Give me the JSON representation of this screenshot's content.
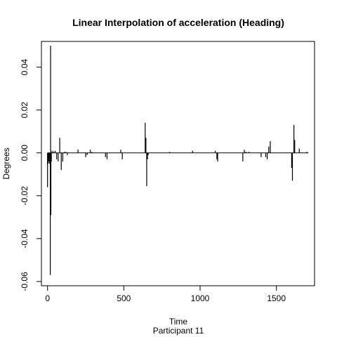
{
  "chart_data": {
    "type": "line",
    "title": "Linear Interpolation of acceleration (Heading)",
    "xlabel": "Time",
    "subtitle": "Participant  11",
    "ylabel": "Degrees",
    "xlim": [
      -40,
      1750
    ],
    "ylim": [
      -0.062,
      0.052
    ],
    "x_ticks": [
      0,
      500,
      1000,
      1500
    ],
    "x_tick_labels": [
      "0",
      "500",
      "1000",
      "1500"
    ],
    "y_ticks": [
      -0.06,
      -0.04,
      -0.02,
      0.0,
      0.02,
      0.04
    ],
    "y_tick_labels": [
      "-0.06",
      "-0.04",
      "-0.02",
      "0.00",
      "0.02",
      "0.04"
    ],
    "grid": false,
    "series": [
      {
        "spikes": [
          [
            0,
            -0.016
          ],
          [
            3,
            -0.005
          ],
          [
            6,
            -0.003
          ],
          [
            9,
            -0.004
          ],
          [
            12,
            -0.005
          ],
          [
            15,
            -0.002
          ],
          [
            18,
            -0.057
          ],
          [
            20,
            0.05
          ],
          [
            22,
            -0.029
          ],
          [
            25,
            -0.004
          ],
          [
            30,
            0.001
          ],
          [
            40,
            0.0007
          ],
          [
            50,
            0.001
          ],
          [
            60,
            -0.003
          ],
          [
            70,
            -0.004
          ],
          [
            80,
            0.007
          ],
          [
            90,
            -0.008
          ],
          [
            100,
            -0.004
          ],
          [
            110,
            0.0005
          ],
          [
            120,
            0.0005
          ],
          [
            130,
            -0.001
          ],
          [
            200,
            0.0015
          ],
          [
            250,
            -0.002
          ],
          [
            260,
            -0.001
          ],
          [
            280,
            0.0015
          ],
          [
            290,
            0.0005
          ],
          [
            380,
            -0.002
          ],
          [
            390,
            -0.003
          ],
          [
            480,
            0.0015
          ],
          [
            490,
            -0.003
          ],
          [
            640,
            0.014
          ],
          [
            645,
            0.007
          ],
          [
            650,
            -0.0155
          ],
          [
            655,
            -0.003
          ],
          [
            660,
            -0.001
          ],
          [
            800,
            0.0005
          ],
          [
            950,
            0.001
          ],
          [
            1100,
            0.001
          ],
          [
            1110,
            -0.003
          ],
          [
            1115,
            -0.004
          ],
          [
            1280,
            -0.004
          ],
          [
            1290,
            0.0015
          ],
          [
            1300,
            0.0005
          ],
          [
            1320,
            0.0005
          ],
          [
            1400,
            -0.002
          ],
          [
            1430,
            -0.002
          ],
          [
            1440,
            -0.003
          ],
          [
            1450,
            0.003
          ],
          [
            1460,
            0.0055
          ],
          [
            1600,
            -0.007
          ],
          [
            1605,
            -0.013
          ],
          [
            1615,
            0.013
          ],
          [
            1620,
            0.006
          ],
          [
            1650,
            0.002
          ],
          [
            1700,
            0.0005
          ]
        ]
      }
    ]
  }
}
